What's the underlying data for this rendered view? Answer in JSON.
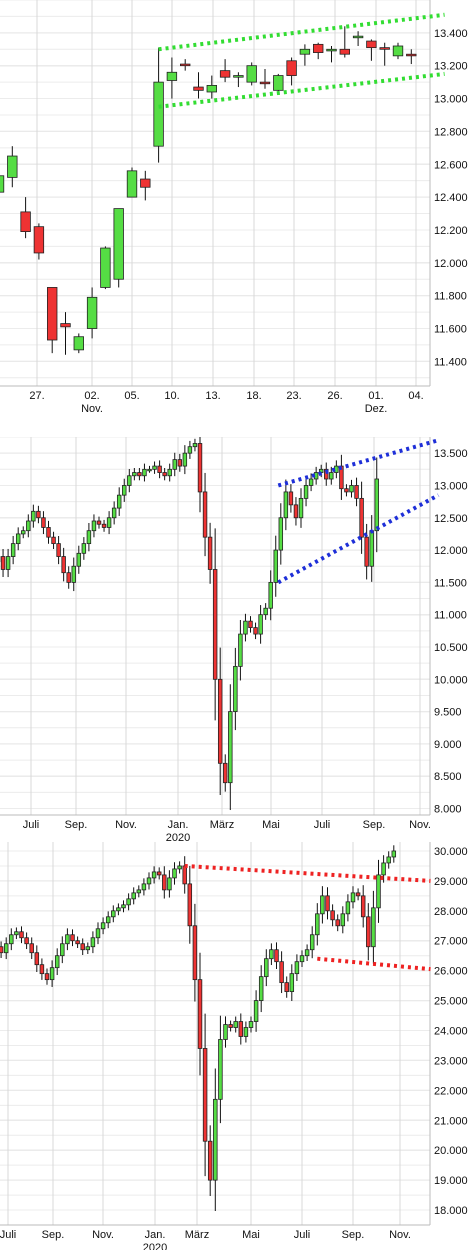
{
  "chart_data": [
    {
      "type": "candlestick",
      "title": "",
      "xlabel": "",
      "ylabel": "",
      "ylim": [
        11250,
        13600
      ],
      "grid": true,
      "x_ticks": [
        "27.",
        "02.",
        "05.",
        "10.",
        "13.",
        "18.",
        "23.",
        "26.",
        "01.",
        "04."
      ],
      "x_sublabels": [
        {
          "under": "02.",
          "text": "Nov."
        },
        {
          "under": "01.",
          "text": "Dez."
        }
      ],
      "y_ticks": [
        "11.400",
        "11.600",
        "11.800",
        "12.000",
        "12.200",
        "12.400",
        "12.600",
        "12.800",
        "13.000",
        "13.200",
        "13.400"
      ],
      "candles": [
        {
          "o": 12430,
          "c": 12530,
          "h": 12600,
          "l": 12300
        },
        {
          "o": 12520,
          "c": 12650,
          "h": 12710,
          "l": 12460
        },
        {
          "o": 12310,
          "c": 12190,
          "h": 12400,
          "l": 12150
        },
        {
          "o": 12220,
          "c": 12060,
          "h": 12240,
          "l": 12020
        },
        {
          "o": 11850,
          "c": 11530,
          "h": 11850,
          "l": 11450
        },
        {
          "o": 11630,
          "c": 11610,
          "h": 11700,
          "l": 11440
        },
        {
          "o": 11470,
          "c": 11550,
          "h": 11570,
          "l": 11450
        },
        {
          "o": 11600,
          "c": 11790,
          "h": 11850,
          "l": 11540
        },
        {
          "o": 11850,
          "c": 12090,
          "h": 12100,
          "l": 11840
        },
        {
          "o": 11900,
          "c": 12330,
          "h": 12330,
          "l": 11850
        },
        {
          "o": 12400,
          "c": 12560,
          "h": 12580,
          "l": 12400
        },
        {
          "o": 12510,
          "c": 12460,
          "h": 12560,
          "l": 12380
        },
        {
          "o": 12710,
          "c": 13100,
          "h": 13310,
          "l": 12610
        },
        {
          "o": 13110,
          "c": 13160,
          "h": 13250,
          "l": 13000
        },
        {
          "o": 13210,
          "c": 13200,
          "h": 13240,
          "l": 13170
        },
        {
          "o": 13070,
          "c": 13050,
          "h": 13160,
          "l": 13000
        },
        {
          "o": 13040,
          "c": 13080,
          "h": 13140,
          "l": 13000
        },
        {
          "o": 13170,
          "c": 13130,
          "h": 13240,
          "l": 13100
        },
        {
          "o": 13130,
          "c": 13140,
          "h": 13160,
          "l": 13070
        },
        {
          "o": 13100,
          "c": 13200,
          "h": 13220,
          "l": 13080
        },
        {
          "o": 13100,
          "c": 13090,
          "h": 13180,
          "l": 13060
        },
        {
          "o": 13050,
          "c": 13140,
          "h": 13150,
          "l": 13030
        },
        {
          "o": 13230,
          "c": 13140,
          "h": 13250,
          "l": 13080
        },
        {
          "o": 13270,
          "c": 13300,
          "h": 13330,
          "l": 13200
        },
        {
          "o": 13330,
          "c": 13280,
          "h": 13340,
          "l": 13240
        },
        {
          "o": 13290,
          "c": 13300,
          "h": 13320,
          "l": 13220
        },
        {
          "o": 13300,
          "c": 13270,
          "h": 13440,
          "l": 13250
        },
        {
          "o": 13370,
          "c": 13380,
          "h": 13410,
          "l": 13320
        },
        {
          "o": 13350,
          "c": 13310,
          "h": 13360,
          "l": 13230
        },
        {
          "o": 13310,
          "c": 13300,
          "h": 13340,
          "l": 13200
        },
        {
          "o": 13260,
          "c": 13320,
          "h": 13340,
          "l": 13240
        },
        {
          "o": 13270,
          "c": 13260,
          "h": 13300,
          "l": 13210
        }
      ],
      "trendlines": [
        {
          "color": "#33dd33",
          "from": {
            "i": 12,
            "v": 13300
          },
          "to": {
            "i": 33.5,
            "v": 13510
          }
        },
        {
          "color": "#33dd33",
          "from": {
            "i": 12,
            "v": 12950
          },
          "to": {
            "i": 33.5,
            "v": 13150
          }
        }
      ]
    },
    {
      "type": "candlestick",
      "title": "",
      "xlabel": "",
      "ylabel": "",
      "ylim": [
        7900,
        13750
      ],
      "grid": true,
      "x_ticks": [
        "Juli",
        "Sep.",
        "Nov.",
        "Jan.",
        "März",
        "Mai",
        "Juli",
        "Sep.",
        "Nov."
      ],
      "x_sublabels": [
        {
          "under": "Jan.",
          "text": "2020"
        }
      ],
      "y_ticks": [
        "8.000",
        "8.500",
        "9.000",
        "9.500",
        "10.000",
        "10.500",
        "11.000",
        "11.500",
        "12.000",
        "12.500",
        "13.000",
        "13.500"
      ],
      "closes": [
        11900,
        11700,
        11900,
        12100,
        12250,
        12300,
        12450,
        12600,
        12500,
        12350,
        12200,
        12100,
        11900,
        11650,
        11500,
        11750,
        11950,
        12100,
        12300,
        12450,
        12400,
        12350,
        12500,
        12650,
        12850,
        13000,
        13150,
        13200,
        13150,
        13250,
        13250,
        13300,
        13200,
        13150,
        13250,
        13400,
        13300,
        13500,
        13600,
        13650,
        12900,
        12200,
        11700,
        10000,
        8700,
        8400,
        9500,
        10200,
        10700,
        10900,
        10800,
        10700,
        11000,
        11100,
        11500,
        12000,
        12500,
        12900,
        12700,
        12500,
        12800,
        13000,
        13100,
        13200,
        13250,
        13100,
        13200,
        13300,
        12950,
        12900,
        13000,
        12800,
        12200,
        11750,
        12300,
        13100
      ],
      "trendlines": [
        {
          "color": "#1e2fd8",
          "from": {
            "i": 55.5,
            "v": 13000
          },
          "to": {
            "i": 87.2,
            "v": 13700
          }
        },
        {
          "color": "#1e2fd8",
          "from": {
            "i": 55.5,
            "v": 11500
          },
          "to": {
            "i": 87.2,
            "v": 12850
          }
        }
      ]
    },
    {
      "type": "candlestick",
      "title": "",
      "xlabel": "",
      "ylabel": "",
      "ylim": [
        17500,
        30300
      ],
      "grid": true,
      "x_ticks": [
        "Juli",
        "Sep.",
        "Nov.",
        "Jan.",
        "März",
        "Mai",
        "Juli",
        "Sep.",
        "Nov."
      ],
      "x_sublabels": [
        {
          "under": "Jan.",
          "text": "2020"
        }
      ],
      "y_ticks": [
        "18.000",
        "19.000",
        "20.000",
        "21.000",
        "22.000",
        "23.000",
        "24.000",
        "25.000",
        "26.000",
        "27.000",
        "28.000",
        "29.000",
        "30.000"
      ],
      "closes": [
        26800,
        26600,
        26900,
        27200,
        27300,
        27100,
        26900,
        26600,
        26200,
        25900,
        25700,
        26100,
        26500,
        26900,
        27200,
        27000,
        26900,
        26700,
        26800,
        27100,
        27400,
        27600,
        27800,
        28000,
        28100,
        28200,
        28400,
        28600,
        28700,
        28900,
        29100,
        29300,
        29200,
        28700,
        29100,
        29400,
        29500,
        28900,
        27500,
        25700,
        23400,
        20300,
        19000,
        21700,
        23700,
        24200,
        24100,
        24300,
        23800,
        24100,
        24300,
        25000,
        25800,
        26400,
        26700,
        26300,
        25600,
        25300,
        25900,
        26300,
        26500,
        26700,
        27200,
        27900,
        28500,
        28000,
        27700,
        27500,
        27900,
        28300,
        28600,
        28500,
        27800,
        26800,
        28100,
        29200,
        29600,
        29800,
        30000
      ],
      "trendlines": [
        {
          "color": "#ee2222",
          "from": {
            "i": 37,
            "v": 29500
          },
          "to": {
            "i": 85.2,
            "v": 29000
          }
        },
        {
          "color": "#ee2222",
          "from": {
            "i": 63,
            "v": 26400
          },
          "to": {
            "i": 85.2,
            "v": 26050
          }
        }
      ]
    }
  ]
}
